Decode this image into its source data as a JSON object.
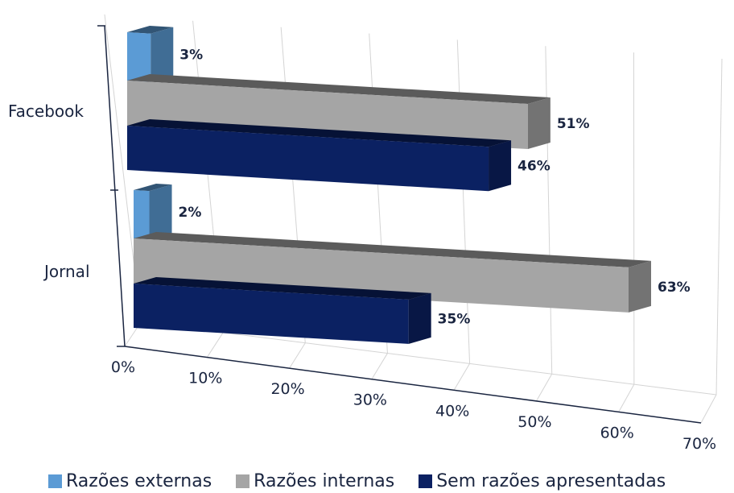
{
  "chart_data": {
    "type": "bar",
    "orientation": "horizontal",
    "three_d": true,
    "categories": [
      "Facebook",
      "Jornal"
    ],
    "series": [
      {
        "name": "Razões externas",
        "values": [
          3,
          2
        ],
        "labels": [
          "3%",
          "2%"
        ],
        "color": "#5b9bd5"
      },
      {
        "name": "Razões internas",
        "values": [
          51,
          63
        ],
        "labels": [
          "51%",
          "63%"
        ],
        "color": "#a5a5a5"
      },
      {
        "name": "Sem razões apresentadas",
        "values": [
          46,
          35
        ],
        "labels": [
          "46%",
          "35%"
        ],
        "color": "#0b2162"
      }
    ],
    "x_ticks": [
      "0%",
      "10%",
      "20%",
      "30%",
      "40%",
      "50%",
      "60%",
      "70%"
    ],
    "xlim": [
      0,
      70
    ],
    "grid": true,
    "legend_position": "bottom"
  }
}
